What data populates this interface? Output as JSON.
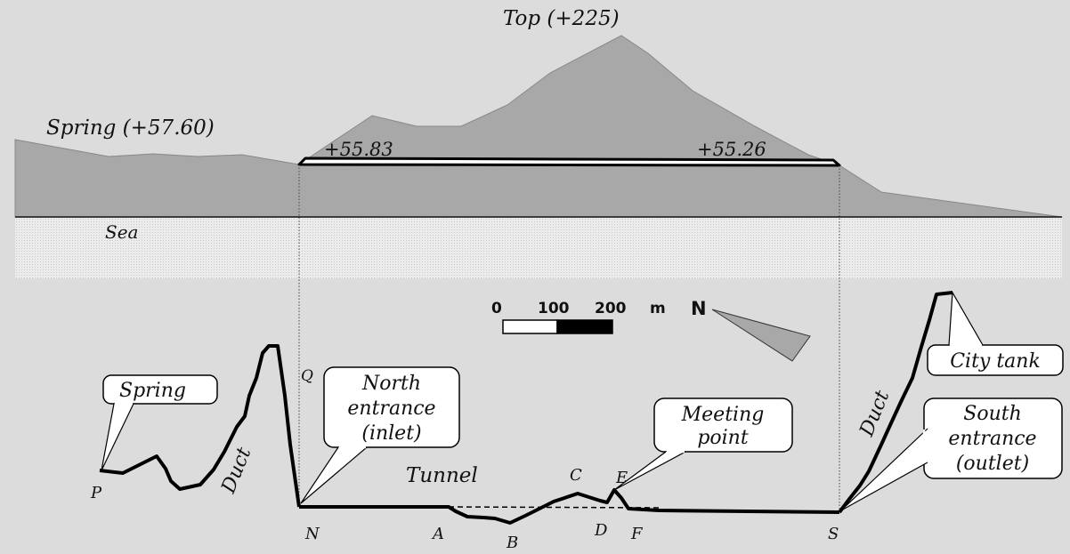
{
  "profile": {
    "top_label": "Top (+225)",
    "spring_elev_label": "Spring (+57.60)",
    "north_elev_label": "+55.83",
    "south_elev_label": "+55.26",
    "sea_label": "Sea"
  },
  "scale": {
    "tick0": "0",
    "tick1": "100",
    "tick2": "200",
    "unit": "m",
    "north": "N"
  },
  "plan": {
    "q_label": "Q",
    "p_label": "P",
    "n_label": "N",
    "a_label": "A",
    "b_label": "B",
    "c_label": "C",
    "d_label": "D",
    "e_label": "E",
    "f_label": "F",
    "s_label": "S",
    "tunnel_label": "Tunnel",
    "duct_left_label": "Duct",
    "duct_right_label": "Duct"
  },
  "callouts": {
    "spring": "Spring",
    "north_1": "North",
    "north_2": "entrance",
    "north_3": "(inlet)",
    "meeting_1": "Meeting",
    "meeting_2": "point",
    "city_tank": "City tank",
    "south_1": "South",
    "south_2": "entrance",
    "south_3": "(outlet)"
  },
  "colors": {
    "background": "#dcdcdc",
    "mountain": "#a8a8a8",
    "sea": "#ececec",
    "line": "#000000"
  }
}
